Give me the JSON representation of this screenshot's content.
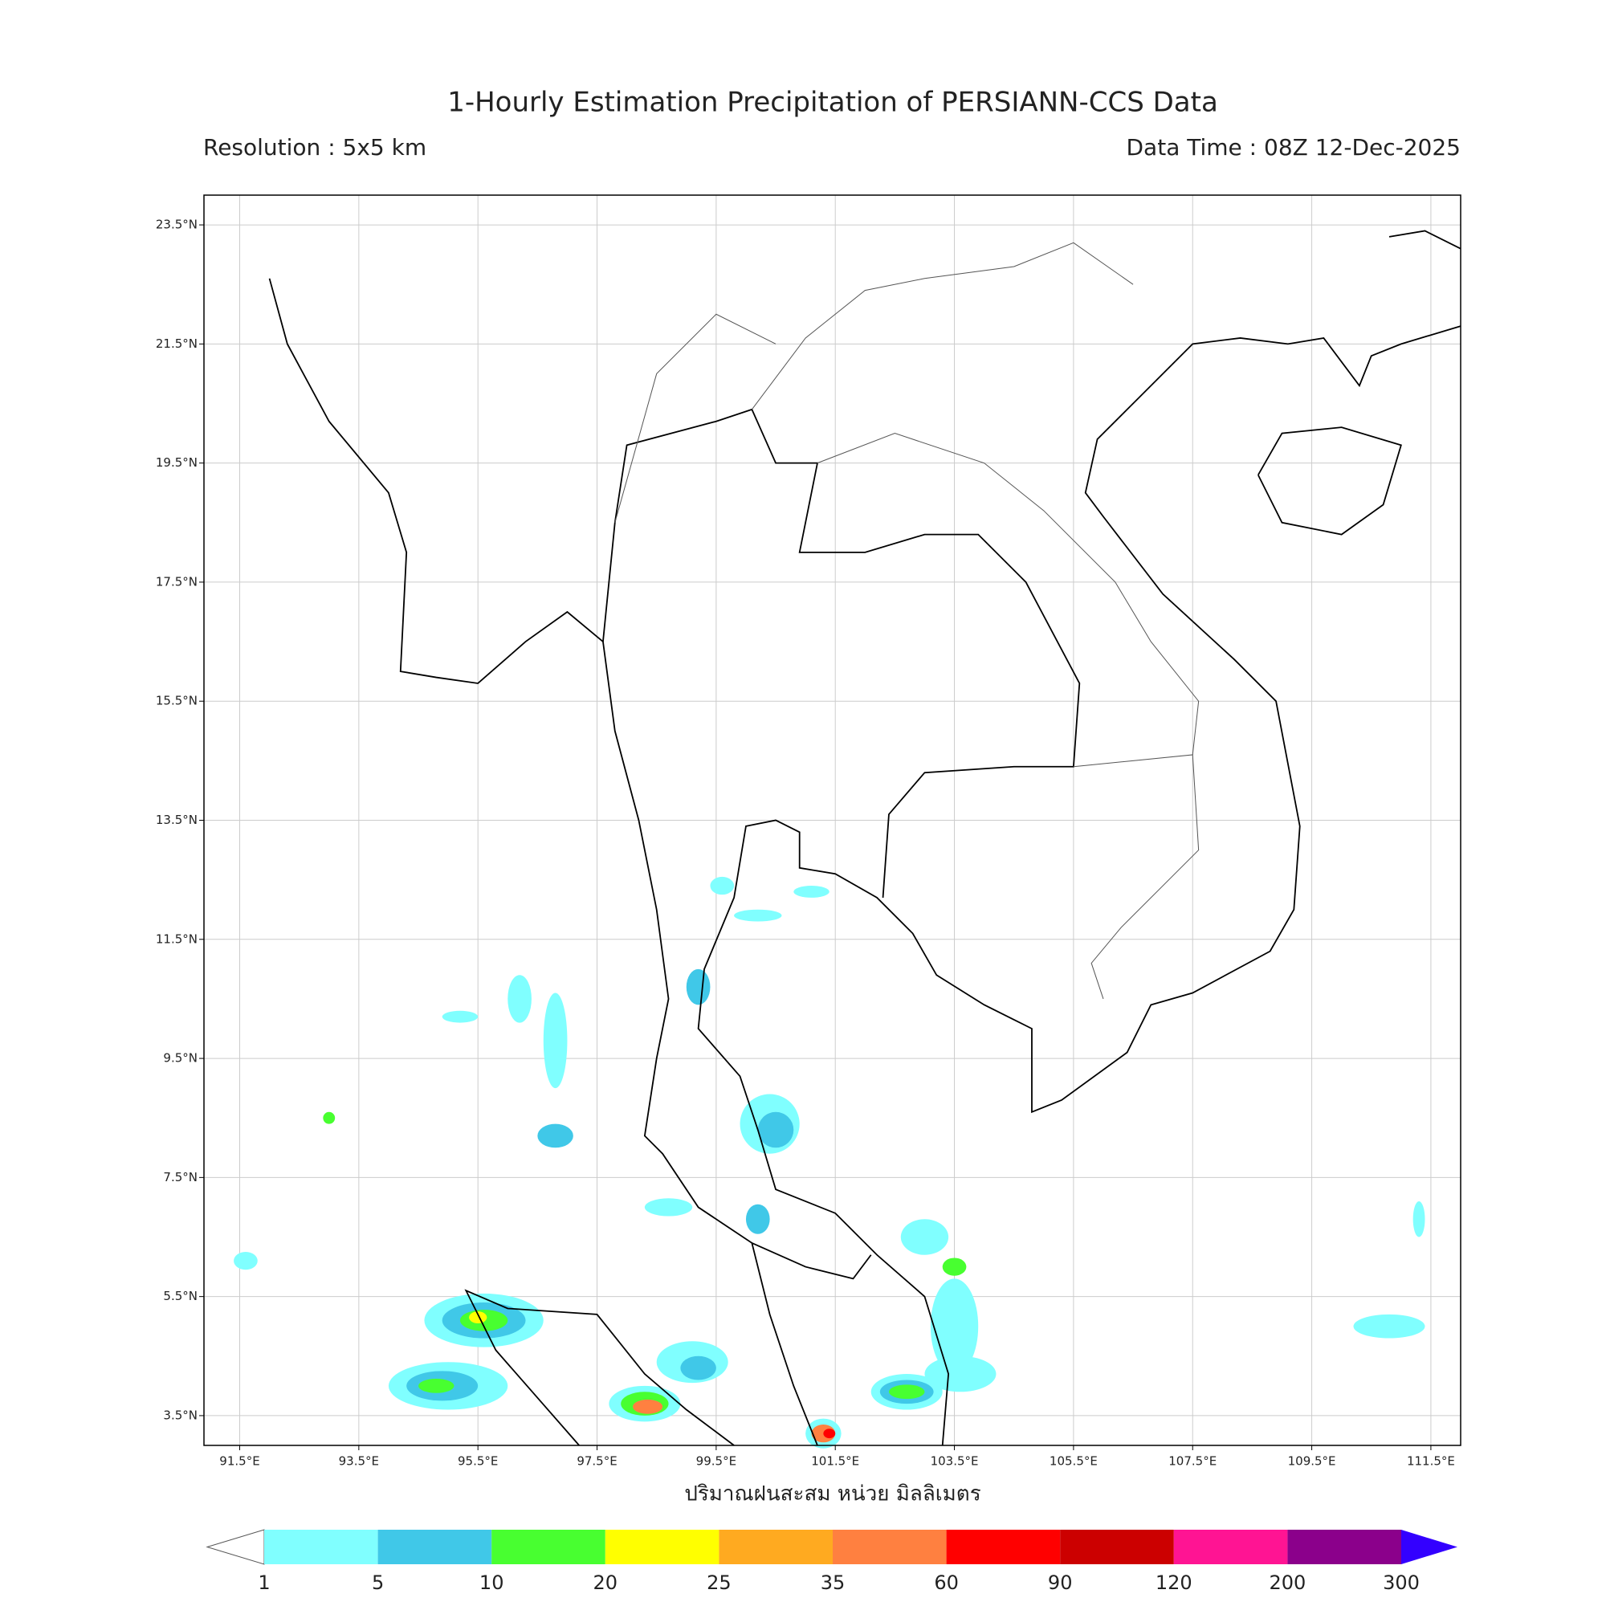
{
  "map": {
    "title": "1-Hourly Estimation Precipitation of PERSIANN-CCS Data",
    "resolution": "Resolution : 5x5 km",
    "data_time": "Data Time : 08Z 12-Dec-2025",
    "xlim": [
      90.9,
      112.0
    ],
    "ylim": [
      3.0,
      24.0
    ],
    "grid": true,
    "lon_ticks": [
      {
        "value": 91.5,
        "label": "91.5°E"
      },
      {
        "value": 93.5,
        "label": "93.5°E"
      },
      {
        "value": 95.5,
        "label": "95.5°E"
      },
      {
        "value": 97.5,
        "label": "97.5°E"
      },
      {
        "value": 99.5,
        "label": "99.5°E"
      },
      {
        "value": 101.5,
        "label": "101.5°E"
      },
      {
        "value": 103.5,
        "label": "103.5°E"
      },
      {
        "value": 105.5,
        "label": "105.5°E"
      },
      {
        "value": 107.5,
        "label": "107.5°E"
      },
      {
        "value": 109.5,
        "label": "109.5°E"
      },
      {
        "value": 111.5,
        "label": "111.5°E"
      }
    ],
    "lat_ticks": [
      {
        "value": 23.5,
        "label": "23.5°N"
      },
      {
        "value": 21.5,
        "label": "21.5°N"
      },
      {
        "value": 19.5,
        "label": "19.5°N"
      },
      {
        "value": 17.5,
        "label": "17.5°N"
      },
      {
        "value": 15.5,
        "label": "15.5°N"
      },
      {
        "value": 13.5,
        "label": "13.5°N"
      },
      {
        "value": 11.5,
        "label": "11.5°N"
      },
      {
        "value": 9.5,
        "label": "9.5°N"
      },
      {
        "value": 7.5,
        "label": "7.5°N"
      },
      {
        "value": 5.5,
        "label": "5.5°N"
      },
      {
        "value": 3.5,
        "label": "3.5°N"
      }
    ],
    "colorbar": {
      "label": "ปริมาณฝนสะสม หน่วย มิลลิเมตร",
      "levels": [
        1,
        5,
        10,
        20,
        25,
        35,
        60,
        90,
        120,
        200,
        300
      ],
      "colors": [
        "#80ffff",
        "#40c8e8",
        "#48ff30",
        "#ffff00",
        "#ffaa20",
        "#ff8040",
        "#ff0000",
        "#cc0000",
        "#ff1493",
        "#8b008b"
      ],
      "over_color": "#3300ff"
    }
  }
}
